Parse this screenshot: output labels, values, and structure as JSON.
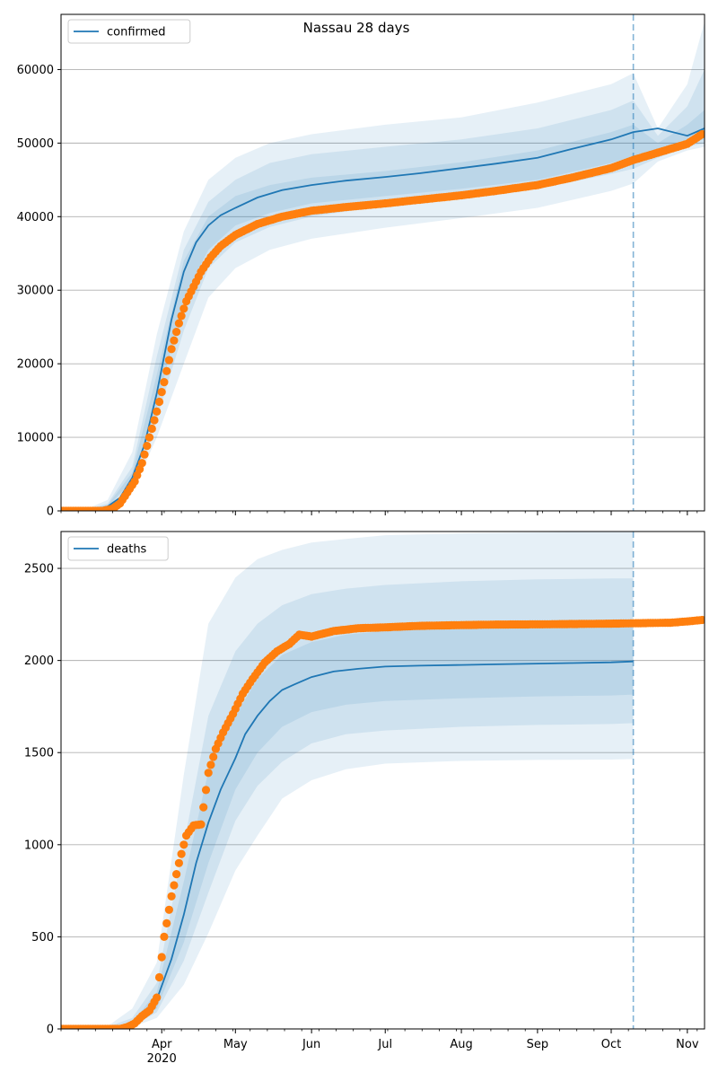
{
  "figure_title": "Nassau 28 days",
  "colors": {
    "model": "#1f77b4",
    "observed": "#ff7f0e",
    "band": "#1f77b4",
    "grid": "#b0b0b0",
    "axes": "#000000"
  },
  "chart_data": [
    {
      "type": "line",
      "name": "confirmed",
      "legend": "confirmed",
      "legend_loc": "upper-left",
      "grid": "y",
      "xlim": [
        "2020-02-20",
        "2020-11-08"
      ],
      "ylim": [
        0,
        67500
      ],
      "yticks": [
        0,
        10000,
        20000,
        30000,
        40000,
        50000,
        60000
      ],
      "forecast_date": "2020-10-10",
      "series": [
        {
          "name": "confirmed",
          "x": [
            "2020-02-20",
            "2020-03-01",
            "2020-03-05",
            "2020-03-10",
            "2020-03-15",
            "2020-03-20",
            "2020-03-25",
            "2020-03-30",
            "2020-04-05",
            "2020-04-10",
            "2020-04-15",
            "2020-04-20",
            "2020-04-25",
            "2020-05-01",
            "2020-05-10",
            "2020-05-20",
            "2020-06-01",
            "2020-06-15",
            "2020-07-01",
            "2020-07-15",
            "2020-08-01",
            "2020-08-15",
            "2020-09-01",
            "2020-09-15",
            "2020-10-01",
            "2020-10-10",
            "2020-10-20",
            "2020-11-01",
            "2020-11-08"
          ],
          "y": [
            0,
            50,
            200,
            600,
            1800,
            4500,
            9000,
            16000,
            26000,
            32500,
            36500,
            38800,
            40200,
            41200,
            42600,
            43600,
            44300,
            44900,
            45400,
            45900,
            46600,
            47200,
            48000,
            49200,
            50500,
            51500,
            52000,
            51000,
            52000
          ]
        },
        {
          "name": "observed",
          "x": [
            "2020-02-20",
            "2020-03-08",
            "2020-03-12",
            "2020-03-15",
            "2020-03-18",
            "2020-03-21",
            "2020-03-24",
            "2020-03-27",
            "2020-03-30",
            "2020-04-02",
            "2020-04-05",
            "2020-04-08",
            "2020-04-11",
            "2020-04-14",
            "2020-04-17",
            "2020-04-21",
            "2020-04-25",
            "2020-05-01",
            "2020-05-10",
            "2020-05-20",
            "2020-06-01",
            "2020-06-15",
            "2020-07-01",
            "2020-07-15",
            "2020-08-01",
            "2020-08-15",
            "2020-09-01",
            "2020-09-15",
            "2020-10-01",
            "2020-10-10",
            "2020-10-20",
            "2020-11-01",
            "2020-11-07"
          ],
          "y": [
            0,
            0,
            300,
            1000,
            2500,
            4000,
            6500,
            10000,
            13500,
            17500,
            22000,
            25500,
            28500,
            30500,
            32500,
            34500,
            36000,
            37500,
            39000,
            40000,
            40800,
            41300,
            41800,
            42300,
            42900,
            43500,
            44300,
            45300,
            46600,
            47700,
            48700,
            49900,
            51200
          ]
        }
      ],
      "bands": [
        {
          "label": "outer",
          "x": [
            "2020-02-20",
            "2020-03-01",
            "2020-03-10",
            "2020-03-20",
            "2020-03-30",
            "2020-04-10",
            "2020-04-20",
            "2020-05-01",
            "2020-05-15",
            "2020-06-01",
            "2020-07-01",
            "2020-08-01",
            "2020-09-01",
            "2020-10-01",
            "2020-10-10",
            "2020-10-20",
            "2020-11-01",
            "2020-11-08"
          ],
          "lower": [
            0,
            0,
            200,
            2500,
            10000,
            20000,
            29000,
            33000,
            35500,
            37000,
            38500,
            39800,
            41200,
            43500,
            44500,
            47500,
            49000,
            49500
          ],
          "upper": [
            0,
            200,
            1500,
            8000,
            24000,
            38000,
            45000,
            48000,
            50000,
            51200,
            52500,
            53500,
            55500,
            58000,
            59500,
            52000,
            58000,
            66500
          ]
        },
        {
          "label": "middle",
          "x": [
            "2020-02-20",
            "2020-03-01",
            "2020-03-10",
            "2020-03-20",
            "2020-03-30",
            "2020-04-10",
            "2020-04-20",
            "2020-05-01",
            "2020-05-15",
            "2020-06-01",
            "2020-07-01",
            "2020-08-01",
            "2020-09-01",
            "2020-10-01",
            "2020-10-10",
            "2020-10-20",
            "2020-11-01",
            "2020-11-08"
          ],
          "lower": [
            0,
            20,
            400,
            3800,
            12500,
            24500,
            33000,
            36500,
            38600,
            40000,
            41500,
            42500,
            43800,
            45800,
            46500,
            48000,
            49500,
            50000
          ],
          "upper": [
            0,
            120,
            1000,
            6000,
            21000,
            35500,
            42000,
            45000,
            47300,
            48500,
            49500,
            50500,
            52000,
            54500,
            55800,
            51000,
            55000,
            60000
          ]
        },
        {
          "label": "inner",
          "x": [
            "2020-02-20",
            "2020-03-01",
            "2020-03-10",
            "2020-03-20",
            "2020-03-30",
            "2020-04-10",
            "2020-04-20",
            "2020-05-01",
            "2020-05-15",
            "2020-06-01",
            "2020-07-01",
            "2020-08-01",
            "2020-09-01",
            "2020-10-01",
            "2020-10-10",
            "2020-10-20",
            "2020-11-01",
            "2020-11-08"
          ],
          "lower": [
            0,
            30,
            500,
            4200,
            14000,
            29000,
            35500,
            38800,
            40500,
            41800,
            42800,
            43800,
            45000,
            47300,
            48200,
            48800,
            50000,
            50500
          ],
          "upper": [
            0,
            80,
            800,
            5200,
            18500,
            34000,
            40000,
            42800,
            44300,
            45300,
            46200,
            47400,
            49000,
            51500,
            52500,
            50000,
            52500,
            54500
          ]
        }
      ]
    },
    {
      "type": "line",
      "name": "deaths",
      "legend": "deaths",
      "legend_loc": "upper-left",
      "grid": "y",
      "xlim": [
        "2020-02-20",
        "2020-11-08"
      ],
      "ylim": [
        0,
        2700
      ],
      "yticks": [
        0,
        500,
        1000,
        1500,
        2000,
        2500
      ],
      "forecast_date": "2020-10-10",
      "series": [
        {
          "name": "deaths",
          "x": [
            "2020-02-20",
            "2020-03-15",
            "2020-03-20",
            "2020-03-25",
            "2020-03-30",
            "2020-04-05",
            "2020-04-10",
            "2020-04-15",
            "2020-04-20",
            "2020-04-25",
            "2020-05-01",
            "2020-05-05",
            "2020-05-10",
            "2020-05-15",
            "2020-05-20",
            "2020-05-25",
            "2020-06-01",
            "2020-06-10",
            "2020-06-20",
            "2020-07-01",
            "2020-07-15",
            "2020-08-01",
            "2020-08-15",
            "2020-09-01",
            "2020-09-15",
            "2020-10-01",
            "2020-10-10"
          ],
          "y": [
            0,
            5,
            20,
            60,
            160,
            380,
            620,
            900,
            1120,
            1300,
            1470,
            1600,
            1700,
            1780,
            1840,
            1870,
            1910,
            1940,
            1955,
            1967,
            1972,
            1976,
            1979,
            1983,
            1986,
            1990,
            1995
          ]
        },
        {
          "name": "observed",
          "x": [
            "2020-02-20",
            "2020-03-15",
            "2020-03-18",
            "2020-03-21",
            "2020-03-24",
            "2020-03-27",
            "2020-03-30",
            "2020-04-02",
            "2020-04-05",
            "2020-04-08",
            "2020-04-11",
            "2020-04-14",
            "2020-04-17",
            "2020-04-20",
            "2020-04-23",
            "2020-04-26",
            "2020-04-30",
            "2020-05-04",
            "2020-05-08",
            "2020-05-13",
            "2020-05-18",
            "2020-05-23",
            "2020-05-27",
            "2020-06-01",
            "2020-06-10",
            "2020-06-20",
            "2020-07-01",
            "2020-07-15",
            "2020-08-01",
            "2020-08-15",
            "2020-09-01",
            "2020-09-15",
            "2020-10-01",
            "2020-10-10",
            "2020-10-25",
            "2020-11-01",
            "2020-11-07"
          ],
          "y": [
            0,
            0,
            10,
            30,
            70,
            100,
            170,
            500,
            720,
            900,
            1050,
            1105,
            1110,
            1390,
            1520,
            1610,
            1710,
            1820,
            1900,
            1990,
            2050,
            2090,
            2140,
            2130,
            2160,
            2175,
            2180,
            2188,
            2192,
            2195,
            2196,
            2198,
            2200,
            2202,
            2205,
            2212,
            2220
          ]
        }
      ],
      "bands": [
        {
          "label": "outer",
          "x": [
            "2020-02-20",
            "2020-03-10",
            "2020-03-20",
            "2020-03-30",
            "2020-04-10",
            "2020-04-20",
            "2020-05-01",
            "2020-05-10",
            "2020-05-20",
            "2020-06-01",
            "2020-06-15",
            "2020-07-01",
            "2020-08-01",
            "2020-09-01",
            "2020-10-01",
            "2020-10-10"
          ],
          "lower": [
            0,
            0,
            10,
            60,
            240,
            520,
            860,
            1050,
            1250,
            1350,
            1410,
            1440,
            1455,
            1460,
            1462,
            1465
          ],
          "upper": [
            0,
            15,
            110,
            360,
            1380,
            2200,
            2450,
            2550,
            2600,
            2640,
            2660,
            2680,
            2690,
            2695,
            2700,
            2700
          ]
        },
        {
          "label": "middle",
          "x": [
            "2020-02-20",
            "2020-03-10",
            "2020-03-20",
            "2020-03-30",
            "2020-04-10",
            "2020-04-20",
            "2020-05-01",
            "2020-05-10",
            "2020-05-20",
            "2020-06-01",
            "2020-06-15",
            "2020-07-01",
            "2020-08-01",
            "2020-09-01",
            "2020-10-01",
            "2020-10-10"
          ],
          "lower": [
            0,
            0,
            14,
            90,
            370,
            740,
            1130,
            1320,
            1450,
            1550,
            1600,
            1620,
            1640,
            1650,
            1655,
            1660
          ],
          "upper": [
            0,
            10,
            60,
            250,
            1000,
            1700,
            2050,
            2200,
            2300,
            2360,
            2390,
            2410,
            2430,
            2440,
            2445,
            2445
          ]
        },
        {
          "label": "inner",
          "x": [
            "2020-02-20",
            "2020-03-10",
            "2020-03-20",
            "2020-03-30",
            "2020-04-10",
            "2020-04-20",
            "2020-05-01",
            "2020-05-10",
            "2020-05-20",
            "2020-06-01",
            "2020-06-15",
            "2020-07-01",
            "2020-08-01",
            "2020-09-01",
            "2020-10-01",
            "2020-10-10"
          ],
          "lower": [
            0,
            2,
            17,
            110,
            470,
            900,
            1300,
            1500,
            1640,
            1720,
            1760,
            1780,
            1795,
            1805,
            1810,
            1815
          ],
          "upper": [
            0,
            6,
            35,
            200,
            800,
            1400,
            1700,
            1900,
            2030,
            2100,
            2140,
            2160,
            2180,
            2190,
            2195,
            2195
          ]
        }
      ]
    }
  ],
  "xaxis": {
    "major_ticks": [
      "2020-04-01",
      "2020-05-01",
      "2020-06-01",
      "2020-07-01",
      "2020-08-01",
      "2020-09-01",
      "2020-10-01",
      "2020-11-01"
    ],
    "month_labels": [
      "Apr",
      "May",
      "Jun",
      "Jul",
      "Aug",
      "Sep",
      "Oct",
      "Nov"
    ],
    "year_label": "2020"
  }
}
